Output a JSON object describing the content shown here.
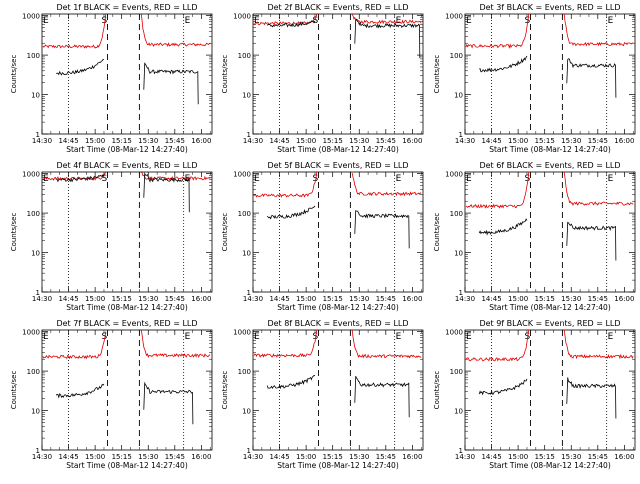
{
  "figure": {
    "xlabel": "Start Time (08-Mar-12 14:27:40)",
    "ylabel": "Counts/sec",
    "x_ticks": [
      "14:30",
      "14:45",
      "15:00",
      "15:15",
      "15:30",
      "15:45",
      "16:00"
    ],
    "y_ticks": [
      "1",
      "10",
      "100",
      "1000"
    ],
    "markers": {
      "E": "E",
      "S": "S"
    },
    "colors": {
      "events": "#000000",
      "lld": "#e00000",
      "axes": "#000000"
    }
  },
  "chart_data": [
    {
      "type": "line",
      "title": "Det 1f BLACK = Events, RED = LLD",
      "ylim": [
        1,
        1100
      ],
      "xlim": [
        "14:30",
        "16:06"
      ],
      "yscale": "log",
      "series": [
        {
          "name": "Events",
          "color": "#000000",
          "pre_level": 35,
          "post_level": 38,
          "rise_to": 80,
          "gap_after": "15:58"
        },
        {
          "name": "LLD",
          "color": "#e00000",
          "pre_level": 165,
          "post_level": 185
        }
      ]
    },
    {
      "type": "line",
      "title": "Det 2f BLACK = Events, RED = LLD",
      "ylim": [
        1,
        1100
      ],
      "xlim": [
        "14:30",
        "16:06"
      ],
      "yscale": "log",
      "series": [
        {
          "name": "Events",
          "color": "#000000",
          "pre_level": 560,
          "post_level": 560,
          "rise_to": 700,
          "gap_after": "16:04"
        },
        {
          "name": "LLD",
          "color": "#e00000",
          "pre_level": 640,
          "post_level": 700
        }
      ]
    },
    {
      "type": "line",
      "title": "Det 3f BLACK = Events, RED = LLD",
      "ylim": [
        1,
        1100
      ],
      "xlim": [
        "14:30",
        "16:06"
      ],
      "yscale": "log",
      "series": [
        {
          "name": "Events",
          "color": "#000000",
          "pre_level": 42,
          "post_level": 55,
          "rise_to": 90,
          "gap_after": "15:55"
        },
        {
          "name": "LLD",
          "color": "#e00000",
          "pre_level": 170,
          "post_level": 190
        }
      ]
    },
    {
      "type": "line",
      "title": "Det 4f BLACK = Events, RED = LLD",
      "ylim": [
        1,
        1100
      ],
      "xlim": [
        "14:30",
        "16:06"
      ],
      "yscale": "log",
      "series": [
        {
          "name": "Events",
          "color": "#000000",
          "pre_level": 700,
          "post_level": 700,
          "rise_to": 900,
          "gap_after": "15:53"
        },
        {
          "name": "LLD",
          "color": "#e00000",
          "pre_level": 750,
          "post_level": 760
        }
      ]
    },
    {
      "type": "line",
      "title": "Det 5f BLACK = Events, RED = LLD",
      "ylim": [
        1,
        1100
      ],
      "xlim": [
        "14:30",
        "16:06"
      ],
      "yscale": "log",
      "series": [
        {
          "name": "Events",
          "color": "#000000",
          "pre_level": 80,
          "post_level": 85,
          "rise_to": 150,
          "gap_after": "15:58"
        },
        {
          "name": "LLD",
          "color": "#e00000",
          "pre_level": 280,
          "post_level": 310
        }
      ]
    },
    {
      "type": "line",
      "title": "Det 6f BLACK = Events, RED = LLD",
      "ylim": [
        1,
        1100
      ],
      "xlim": [
        "14:30",
        "16:06"
      ],
      "yscale": "log",
      "series": [
        {
          "name": "Events",
          "color": "#000000",
          "pre_level": 32,
          "post_level": 42,
          "rise_to": 70,
          "gap_after": "15:55"
        },
        {
          "name": "LLD",
          "color": "#e00000",
          "pre_level": 150,
          "post_level": 175
        }
      ]
    },
    {
      "type": "line",
      "title": "Det 7f BLACK = Events, RED = LLD",
      "ylim": [
        1,
        1100
      ],
      "xlim": [
        "14:30",
        "16:06"
      ],
      "yscale": "log",
      "series": [
        {
          "name": "Events",
          "color": "#000000",
          "pre_level": 24,
          "post_level": 30,
          "rise_to": 45,
          "gap_after": "15:55"
        },
        {
          "name": "LLD",
          "color": "#e00000",
          "pre_level": 230,
          "post_level": 250
        }
      ]
    },
    {
      "type": "line",
      "title": "Det 8f BLACK = Events, RED = LLD",
      "ylim": [
        1,
        1100
      ],
      "xlim": [
        "14:30",
        "16:06"
      ],
      "yscale": "log",
      "series": [
        {
          "name": "Events",
          "color": "#000000",
          "pre_level": 40,
          "post_level": 45,
          "rise_to": 75,
          "gap_after": "15:58"
        },
        {
          "name": "LLD",
          "color": "#e00000",
          "pre_level": 250,
          "post_level": 240
        }
      ]
    },
    {
      "type": "line",
      "title": "Det 9f BLACK = Events, RED = LLD",
      "ylim": [
        1,
        1100
      ],
      "xlim": [
        "14:30",
        "16:06"
      ],
      "yscale": "log",
      "series": [
        {
          "name": "Events",
          "color": "#000000",
          "pre_level": 28,
          "post_level": 42,
          "rise_to": 60,
          "gap_after": "15:55"
        },
        {
          "name": "LLD",
          "color": "#e00000",
          "pre_level": 200,
          "post_level": 235
        }
      ]
    }
  ]
}
